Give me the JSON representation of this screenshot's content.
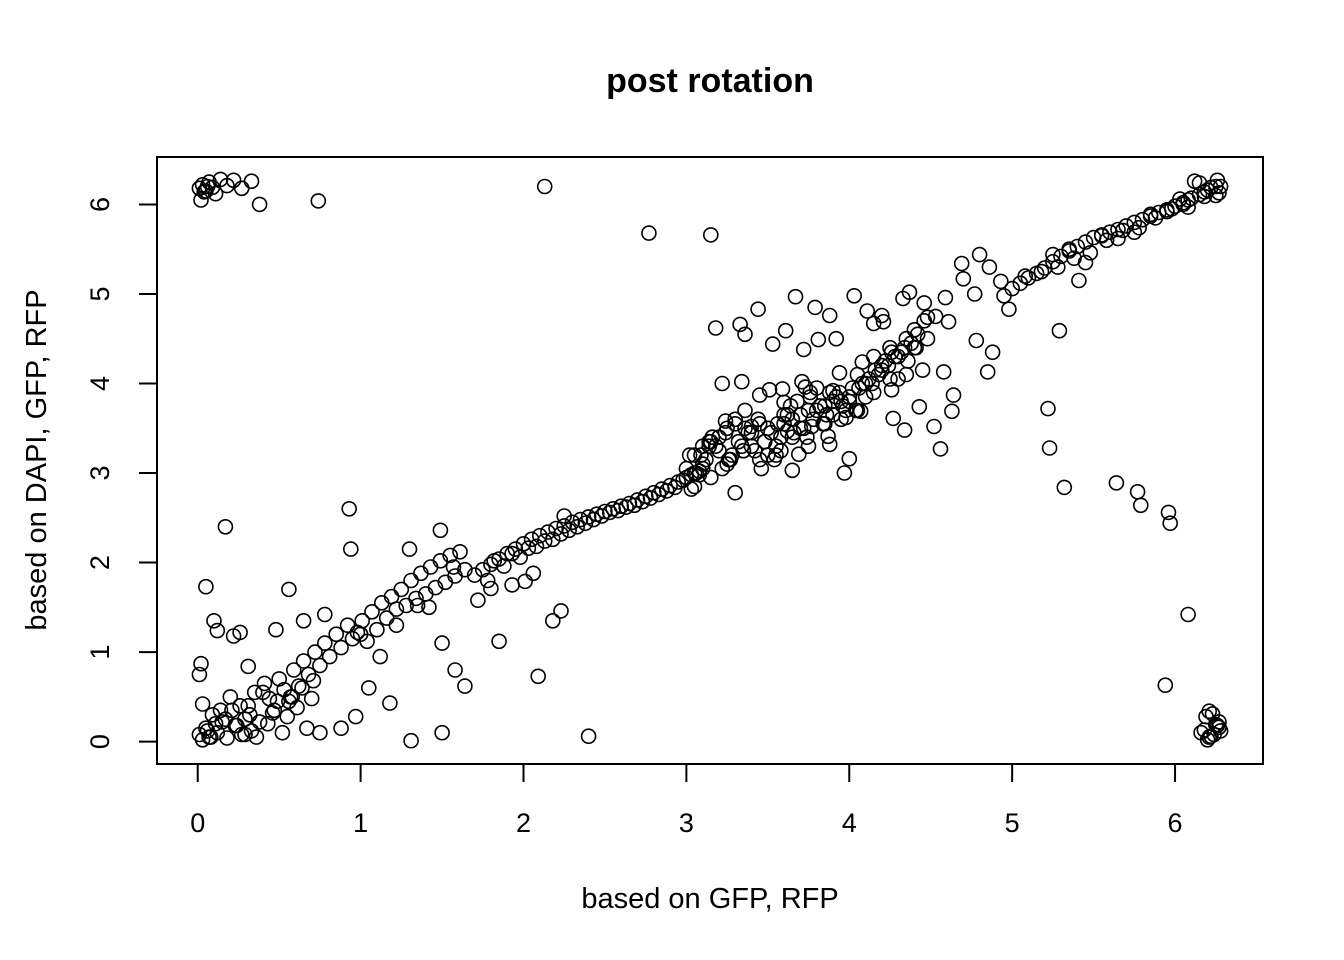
{
  "chart_data": {
    "type": "scatter",
    "title": "post rotation",
    "xlabel": "based on GFP, RFP",
    "ylabel": "based on DAPI, GFP, RFP",
    "xlim": [
      -0.25,
      6.54
    ],
    "ylim": [
      -0.25,
      6.53
    ],
    "xticks": [
      "0",
      "1",
      "2",
      "3",
      "4",
      "5",
      "6"
    ],
    "yticks": [
      "0",
      "1",
      "2",
      "3",
      "4",
      "5",
      "6"
    ],
    "grid": false,
    "legend": "none",
    "marker": "open-circle",
    "color": "#000000",
    "x": [
      0.01,
      0.03,
      0.05,
      0.07,
      0.09,
      0.11,
      0.14,
      0.18,
      0.22,
      0.27,
      0.33,
      0.38,
      0.02,
      0.04,
      0.06,
      0.74,
      2.13,
      2.77,
      3.15,
      0.01,
      0.03,
      0.05,
      0.07,
      0.09,
      0.12,
      0.15,
      0.18,
      0.21,
      0.24,
      0.27,
      0.29,
      0.31,
      0.33,
      0.36,
      0.4,
      0.43,
      0.46,
      0.49,
      0.52,
      0.55,
      0.58,
      0.61,
      0.64,
      0.67,
      0.7,
      0.03,
      0.06,
      0.08,
      0.11,
      0.14,
      0.17,
      0.2,
      0.23,
      0.26,
      0.29,
      0.32,
      0.35,
      0.38,
      0.41,
      0.44,
      0.47,
      0.5,
      0.53,
      0.56,
      0.59,
      0.62,
      0.65,
      0.68,
      0.72,
      0.75,
      0.78,
      0.81,
      0.85,
      0.88,
      0.92,
      0.95,
      0.98,
      1.01,
      1.04,
      1.07,
      1.1,
      1.13,
      1.16,
      1.19,
      1.22,
      1.25,
      1.28,
      1.31,
      1.34,
      1.37,
      1.4,
      1.43,
      1.46,
      1.49,
      1.52,
      1.55,
      1.58,
      1.61,
      1.64,
      0.01,
      0.02,
      0.05,
      0.1,
      0.12,
      0.17,
      0.22,
      0.26,
      0.31,
      0.48,
      0.56,
      0.65,
      0.78,
      0.93,
      0.94,
      1.0,
      1.05,
      1.12,
      1.18,
      1.22,
      1.3,
      1.35,
      1.42,
      1.49,
      1.5,
      1.57,
      1.64,
      1.72,
      1.8,
      1.85,
      1.93,
      2.01,
      2.06,
      2.18,
      2.23,
      2.25,
      2.09,
      0.75,
      0.88,
      0.97,
      1.31,
      1.5,
      2.4,
      0.57,
      0.71,
      1.58,
      1.7,
      1.75,
      1.8,
      1.85,
      1.9,
      1.95,
      2.0,
      2.05,
      2.1,
      2.15,
      2.2,
      2.25,
      2.3,
      2.35,
      2.4,
      2.45,
      2.5,
      2.55,
      2.6,
      2.65,
      2.7,
      2.75,
      2.8,
      2.85,
      2.9,
      2.95,
      3.0,
      3.05,
      3.1,
      1.78,
      1.88,
      1.98,
      2.08,
      2.18,
      2.28,
      2.38,
      2.48,
      2.58,
      2.68,
      2.78,
      2.88,
      2.98,
      3.08,
      1.82,
      1.93,
      2.03,
      2.13,
      2.23,
      2.33,
      2.43,
      2.53,
      2.63,
      2.73,
      2.83,
      2.93,
      3.03,
      3.0,
      3.05,
      3.1,
      3.15,
      3.2,
      3.25,
      3.3,
      3.35,
      3.4,
      3.45,
      3.5,
      3.55,
      3.6,
      3.65,
      3.7,
      3.75,
      3.8,
      3.85,
      3.9,
      3.95,
      4.0,
      4.05,
      4.1,
      4.15,
      4.2,
      4.25,
      4.3,
      4.35,
      4.4,
      4.45,
      3.02,
      3.12,
      3.22,
      3.32,
      3.42,
      3.52,
      3.62,
      3.72,
      3.82,
      3.92,
      4.02,
      4.12,
      4.22,
      4.32,
      4.42,
      3.08,
      3.18,
      3.28,
      3.38,
      3.48,
      3.58,
      3.68,
      3.78,
      3.88,
      3.98,
      4.08,
      4.18,
      4.28,
      4.38,
      4.48,
      3.1,
      3.2,
      3.3,
      3.4,
      3.5,
      3.6,
      3.7,
      3.8,
      3.9,
      4.0,
      4.1,
      4.2,
      4.3,
      4.4,
      3.14,
      3.24,
      3.34,
      3.44,
      3.54,
      3.64,
      3.74,
      3.84,
      3.94,
      4.04,
      4.14,
      4.24,
      4.34,
      3.06,
      3.16,
      3.26,
      3.36,
      3.46,
      3.56,
      3.66,
      3.76,
      3.86,
      3.96,
      4.06,
      4.16,
      4.26,
      4.36,
      4.46,
      3.05,
      3.15,
      3.25,
      3.35,
      3.45,
      3.55,
      3.65,
      3.75,
      3.85,
      3.95,
      4.05,
      4.15,
      4.25,
      4.35,
      3.18,
      3.22,
      3.33,
      3.36,
      3.44,
      3.53,
      3.61,
      3.67,
      3.79,
      3.88,
      3.92,
      4.03,
      4.11,
      4.21,
      4.33,
      4.37,
      4.46,
      4.53,
      4.61,
      4.69,
      4.77,
      4.86,
      4.93,
      3.03,
      3.14,
      3.3,
      3.58,
      3.65,
      3.97,
      4.0,
      4.34,
      4.56,
      4.64,
      4.78,
      4.85,
      4.88,
      4.8,
      4.7,
      4.59,
      3.24,
      3.36,
      3.45,
      3.76,
      3.88,
      3.6,
      3.72,
      3.81,
      3.94,
      4.08,
      4.27,
      4.41,
      4.48,
      4.52,
      4.63,
      3.34,
      3.51,
      3.71,
      3.9,
      4.2,
      4.43,
      4.58,
      3.73,
      3.62,
      4.26,
      4.15,
      4.07,
      3.98,
      3.87,
      3.77,
      3.69,
      3.59,
      3.48,
      3.4,
      3.27,
      3.16,
      3.09,
      4.95,
      5.0,
      5.05,
      5.1,
      5.15,
      5.2,
      5.25,
      5.3,
      5.35,
      5.4,
      5.45,
      5.5,
      5.55,
      5.6,
      5.65,
      5.7,
      5.75,
      5.8,
      5.85,
      5.9,
      5.95,
      6.0,
      6.05,
      6.1,
      6.15,
      6.2,
      6.25,
      4.98,
      5.08,
      5.18,
      5.28,
      5.38,
      5.48,
      5.58,
      5.68,
      5.78,
      5.88,
      5.98,
      6.08,
      6.18,
      6.28,
      5.25,
      5.35,
      5.45,
      5.55,
      5.65,
      5.75,
      5.85,
      5.95,
      6.05,
      6.15,
      6.25,
      6.27,
      6.12,
      6.18,
      6.22,
      6.26,
      6.03,
      6.08,
      5.29,
      5.41,
      5.22,
      5.23,
      5.32,
      5.64,
      5.77,
      5.79,
      5.96,
      5.97,
      6.08,
      5.94,
      6.16,
      6.19,
      6.21,
      6.23,
      6.25,
      6.27,
      6.28,
      6.2,
      6.24,
      6.18,
      6.22,
      6.26,
      6.21,
      6.27
    ],
    "y": [
      6.18,
      6.22,
      6.15,
      6.25,
      6.19,
      6.12,
      6.28,
      6.21,
      6.27,
      6.18,
      6.26,
      6.0,
      6.05,
      6.14,
      6.2,
      6.04,
      6.2,
      5.68,
      5.66,
      0.08,
      0.02,
      0.15,
      0.05,
      0.3,
      0.1,
      0.22,
      0.04,
      0.35,
      0.18,
      0.08,
      0.25,
      0.4,
      0.12,
      0.05,
      0.55,
      0.2,
      0.32,
      0.45,
      0.1,
      0.28,
      0.5,
      0.38,
      0.6,
      0.15,
      0.48,
      0.42,
      0.12,
      0.05,
      0.2,
      0.35,
      0.25,
      0.5,
      0.18,
      0.4,
      0.08,
      0.3,
      0.55,
      0.22,
      0.65,
      0.48,
      0.35,
      0.7,
      0.58,
      0.45,
      0.8,
      0.62,
      0.9,
      0.75,
      1.0,
      0.85,
      1.1,
      0.95,
      1.2,
      1.05,
      1.3,
      1.15,
      1.22,
      1.35,
      1.12,
      1.45,
      1.25,
      1.55,
      1.38,
      1.62,
      1.48,
      1.7,
      1.52,
      1.8,
      1.6,
      1.88,
      1.65,
      1.95,
      1.72,
      2.02,
      1.78,
      2.08,
      1.85,
      2.12,
      1.92,
      0.75,
      0.87,
      1.73,
      1.35,
      1.24,
      2.4,
      1.18,
      1.22,
      0.84,
      1.25,
      1.7,
      1.35,
      1.42,
      2.6,
      2.15,
      1.2,
      0.6,
      0.95,
      0.43,
      1.3,
      2.15,
      1.52,
      1.5,
      2.36,
      1.1,
      1.95,
      0.62,
      1.58,
      1.71,
      1.12,
      1.75,
      1.79,
      1.88,
      1.35,
      1.46,
      2.52,
      0.73,
      0.1,
      0.15,
      0.28,
      0.01,
      0.1,
      0.06,
      0.5,
      0.68,
      0.8,
      1.86,
      1.92,
      1.98,
      2.04,
      2.1,
      2.15,
      2.21,
      2.26,
      2.3,
      2.34,
      2.38,
      2.41,
      2.45,
      2.48,
      2.51,
      2.54,
      2.57,
      2.6,
      2.63,
      2.66,
      2.7,
      2.74,
      2.78,
      2.82,
      2.86,
      2.9,
      2.95,
      3.0,
      3.05,
      1.8,
      1.96,
      2.06,
      2.18,
      2.26,
      2.36,
      2.44,
      2.52,
      2.58,
      2.64,
      2.72,
      2.8,
      2.92,
      3.02,
      2.02,
      2.1,
      2.16,
      2.24,
      2.32,
      2.4,
      2.48,
      2.56,
      2.62,
      2.68,
      2.76,
      2.84,
      2.98,
      3.05,
      2.85,
      3.3,
      2.95,
      3.4,
      3.1,
      3.6,
      3.25,
      3.45,
      3.15,
      3.5,
      3.2,
      3.55,
      3.4,
      3.65,
      3.3,
      3.7,
      3.55,
      3.8,
      3.6,
      3.85,
      3.7,
      4.0,
      3.9,
      4.2,
      4.05,
      4.3,
      4.1,
      4.4,
      4.15,
      3.2,
      3.15,
      3.05,
      3.35,
      3.25,
      3.45,
      3.65,
      3.5,
      3.75,
      3.85,
      3.95,
      4.05,
      4.25,
      4.35,
      4.55,
      2.98,
      3.3,
      3.2,
      3.45,
      3.35,
      3.4,
      3.8,
      3.6,
      3.9,
      3.7,
      4.0,
      4.1,
      4.3,
      4.45,
      4.5,
      3.1,
      3.25,
      3.55,
      3.3,
      3.2,
      3.65,
      3.5,
      3.95,
      3.65,
      3.8,
      3.85,
      4.15,
      4.05,
      4.6,
      3.35,
      3.45,
      3.3,
      3.6,
      3.15,
      3.75,
      3.4,
      3.55,
      3.9,
      3.7,
      4.0,
      4.2,
      4.4,
      3.0,
      3.4,
      3.15,
      3.5,
      3.05,
      3.55,
      3.45,
      3.85,
      3.65,
      3.75,
      3.95,
      4.15,
      4.35,
      4.25,
      4.7,
      3.2,
      3.35,
      3.5,
      3.25,
      3.55,
      3.3,
      3.6,
      3.7,
      3.75,
      3.8,
      4.1,
      4.3,
      4.4,
      4.5,
      4.62,
      4.0,
      4.66,
      4.55,
      4.83,
      4.44,
      4.59,
      4.97,
      4.85,
      4.76,
      4.5,
      4.98,
      4.81,
      4.69,
      4.95,
      5.02,
      4.9,
      4.75,
      4.69,
      5.34,
      5.0,
      5.3,
      5.14,
      2.82,
      3.3,
      2.78,
      3.25,
      3.03,
      3.0,
      3.16,
      3.48,
      3.27,
      3.87,
      4.48,
      4.13,
      4.35,
      5.44,
      5.17,
      4.96,
      3.58,
      3.7,
      3.87,
      3.9,
      3.32,
      3.79,
      4.38,
      4.49,
      4.12,
      4.24,
      3.61,
      4.4,
      4.74,
      3.52,
      3.69,
      4.02,
      3.93,
      4.02,
      3.92,
      4.76,
      3.74,
      4.13,
      3.96,
      3.47,
      3.93,
      4.67,
      3.69,
      3.62,
      3.41,
      3.52,
      3.21,
      3.94,
      3.35,
      3.52,
      3.15,
      3.4,
      3.2,
      4.98,
      5.06,
      5.12,
      5.18,
      5.23,
      5.29,
      5.36,
      5.42,
      5.48,
      5.53,
      5.58,
      5.63,
      5.66,
      5.69,
      5.72,
      5.76,
      5.8,
      5.83,
      5.87,
      5.91,
      5.94,
      5.98,
      6.02,
      6.07,
      6.11,
      6.16,
      6.2,
      4.83,
      5.2,
      5.25,
      5.3,
      5.4,
      5.46,
      5.6,
      5.71,
      5.74,
      5.85,
      5.95,
      6.05,
      6.14,
      6.2,
      5.44,
      5.5,
      5.35,
      5.65,
      5.62,
      5.69,
      5.89,
      5.92,
      6.0,
      6.24,
      6.1,
      6.13,
      6.26,
      6.09,
      6.19,
      6.27,
      6.06,
      5.97,
      4.59,
      5.15,
      3.72,
      3.28,
      2.84,
      2.89,
      2.79,
      2.64,
      2.56,
      2.44,
      1.42,
      0.63,
      0.1,
      0.28,
      0.05,
      0.31,
      0.19,
      0.16,
      0.12,
      0.02,
      0.08,
      0.13,
      0.06,
      0.18,
      0.34,
      0.22
    ]
  }
}
